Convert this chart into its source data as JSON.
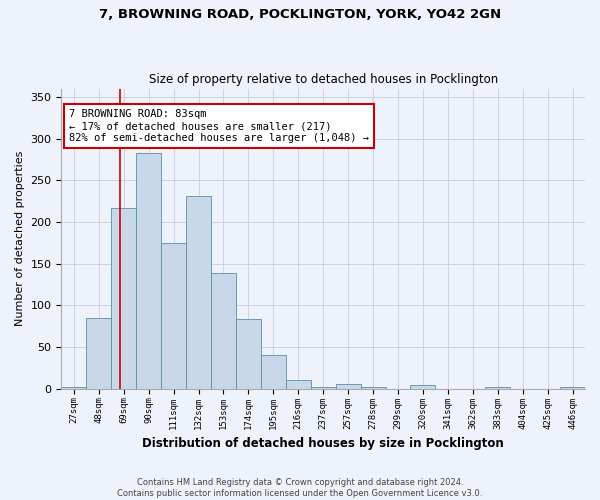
{
  "title1": "7, BROWNING ROAD, POCKLINGTON, YORK, YO42 2GN",
  "title2": "Size of property relative to detached houses in Pocklington",
  "xlabel": "Distribution of detached houses by size in Pocklington",
  "ylabel": "Number of detached properties",
  "footer1": "Contains HM Land Registry data © Crown copyright and database right 2024.",
  "footer2": "Contains public sector information licensed under the Open Government Licence v3.0.",
  "bin_labels": [
    "27sqm",
    "48sqm",
    "69sqm",
    "90sqm",
    "111sqm",
    "132sqm",
    "153sqm",
    "174sqm",
    "195sqm",
    "216sqm",
    "237sqm",
    "257sqm",
    "278sqm",
    "299sqm",
    "320sqm",
    "341sqm",
    "362sqm",
    "383sqm",
    "404sqm",
    "425sqm",
    "446sqm"
  ],
  "bar_values": [
    2,
    85,
    217,
    283,
    175,
    231,
    139,
    84,
    40,
    10,
    2,
    6,
    2,
    0,
    4,
    0,
    0,
    2,
    0,
    0,
    2
  ],
  "bar_color": "#c8d8e8",
  "bar_edge_color": "#5b8fa8",
  "vline_x": 2.35,
  "vline_color": "#cc0000",
  "annotation_text": "7 BROWNING ROAD: 83sqm\n← 17% of detached houses are smaller (217)\n82% of semi-detached houses are larger (1,048) →",
  "annotation_box_color": "#ffffff",
  "annotation_box_edge": "#cc0000",
  "ylim": [
    0,
    360
  ],
  "yticks": [
    0,
    50,
    100,
    150,
    200,
    250,
    300,
    350
  ],
  "background_color": "#eef2fb",
  "plot_bg_color": "#eef2fb",
  "grid_color": "#c8cce0"
}
